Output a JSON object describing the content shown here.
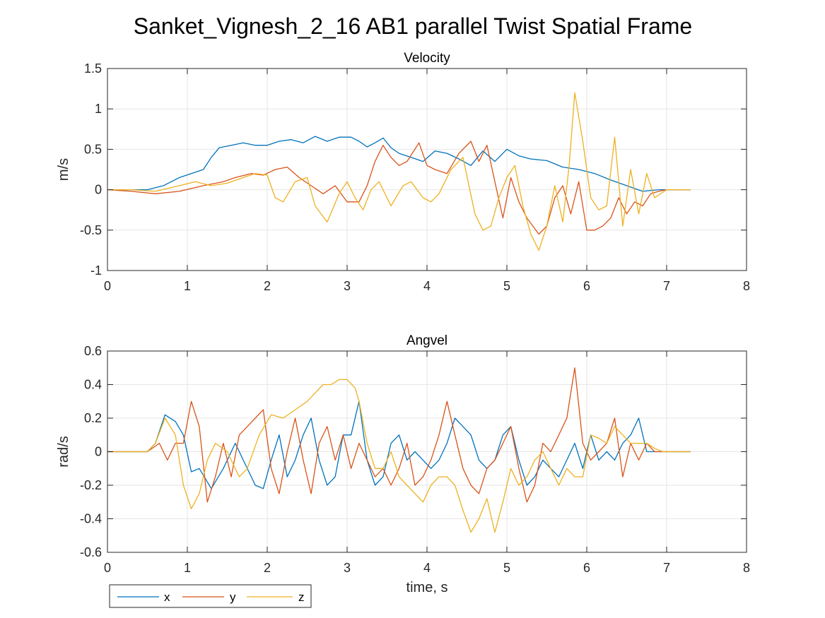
{
  "figure_title": "Sanket_Vignesh_2_16 AB1 parallel Twist Spatial Frame",
  "chart_data": [
    {
      "type": "line",
      "title": "Velocity",
      "xlabel": "",
      "ylabel": "m/s",
      "xlim": [
        0,
        8
      ],
      "ylim": [
        -1,
        1.5
      ],
      "xticks": [
        0,
        1,
        2,
        3,
        4,
        5,
        6,
        7,
        8
      ],
      "yticks": [
        -1,
        -0.5,
        0,
        0.5,
        1,
        1.5
      ],
      "grid": true,
      "series": [
        {
          "name": "x",
          "color": "#0072BD",
          "x": [
            0,
            0.5,
            0.7,
            0.9,
            1.05,
            1.2,
            1.3,
            1.4,
            1.55,
            1.7,
            1.85,
            2.0,
            2.15,
            2.3,
            2.45,
            2.6,
            2.75,
            2.9,
            3.05,
            3.15,
            3.25,
            3.35,
            3.45,
            3.55,
            3.65,
            3.8,
            3.95,
            4.1,
            4.25,
            4.4,
            4.55,
            4.7,
            4.85,
            5.0,
            5.15,
            5.3,
            5.5,
            5.7,
            5.9,
            6.1,
            6.3,
            6.5,
            6.7,
            6.9,
            7.1,
            7.3
          ],
          "y": [
            0,
            0,
            0.05,
            0.15,
            0.2,
            0.25,
            0.4,
            0.52,
            0.55,
            0.58,
            0.55,
            0.55,
            0.6,
            0.62,
            0.58,
            0.66,
            0.6,
            0.65,
            0.65,
            0.6,
            0.53,
            0.58,
            0.64,
            0.52,
            0.45,
            0.4,
            0.35,
            0.48,
            0.45,
            0.38,
            0.3,
            0.48,
            0.35,
            0.5,
            0.42,
            0.38,
            0.36,
            0.28,
            0.25,
            0.2,
            0.12,
            0.05,
            -0.02,
            0,
            0,
            0
          ]
        },
        {
          "name": "y",
          "color": "#D95319",
          "x": [
            0,
            0.3,
            0.6,
            0.9,
            1.2,
            1.45,
            1.6,
            1.8,
            1.95,
            2.1,
            2.25,
            2.4,
            2.55,
            2.7,
            2.85,
            3.0,
            3.15,
            3.25,
            3.35,
            3.45,
            3.55,
            3.65,
            3.75,
            3.9,
            4.0,
            4.1,
            4.25,
            4.4,
            4.55,
            4.65,
            4.75,
            4.85,
            4.95,
            5.05,
            5.15,
            5.25,
            5.4,
            5.5,
            5.6,
            5.7,
            5.8,
            5.9,
            6.0,
            6.1,
            6.2,
            6.3,
            6.4,
            6.5,
            6.6,
            6.7,
            6.8,
            6.9,
            7.0,
            7.1,
            7.3
          ],
          "y": [
            0,
            -0.02,
            -0.05,
            -0.02,
            0.05,
            0.1,
            0.15,
            0.2,
            0.18,
            0.25,
            0.28,
            0.15,
            0.05,
            -0.05,
            0.05,
            -0.15,
            -0.15,
            0.05,
            0.35,
            0.55,
            0.4,
            0.3,
            0.35,
            0.58,
            0.3,
            0.25,
            0.2,
            0.45,
            0.6,
            0.35,
            0.55,
            0.1,
            -0.35,
            0.15,
            -0.15,
            -0.35,
            -0.55,
            -0.45,
            -0.1,
            0.05,
            -0.3,
            0.1,
            -0.5,
            -0.5,
            -0.45,
            -0.35,
            -0.1,
            -0.3,
            -0.15,
            -0.2,
            -0.05,
            -0.02,
            0,
            0,
            0
          ]
        },
        {
          "name": "z",
          "color": "#EDB120",
          "x": [
            0,
            0.3,
            0.6,
            0.9,
            1.1,
            1.3,
            1.5,
            1.7,
            1.85,
            2.0,
            2.1,
            2.2,
            2.35,
            2.5,
            2.6,
            2.75,
            2.9,
            3.0,
            3.1,
            3.2,
            3.3,
            3.4,
            3.55,
            3.7,
            3.8,
            3.95,
            4.05,
            4.15,
            4.3,
            4.45,
            4.6,
            4.7,
            4.8,
            4.9,
            5.0,
            5.1,
            5.2,
            5.3,
            5.4,
            5.5,
            5.6,
            5.7,
            5.78,
            5.85,
            5.95,
            6.05,
            6.15,
            6.25,
            6.35,
            6.45,
            6.55,
            6.65,
            6.75,
            6.85,
            7.0,
            7.3
          ],
          "y": [
            0,
            0,
            -0.02,
            0.05,
            0.1,
            0.05,
            0.08,
            0.15,
            0.2,
            0.18,
            -0.1,
            -0.15,
            0.1,
            0.15,
            -0.2,
            -0.4,
            -0.05,
            0.1,
            -0.1,
            -0.25,
            0,
            0.1,
            -0.2,
            0.05,
            0.1,
            -0.1,
            -0.15,
            -0.05,
            0.25,
            0.4,
            -0.3,
            -0.5,
            -0.45,
            -0.1,
            0.15,
            0.3,
            -0.2,
            -0.55,
            -0.75,
            -0.45,
            0.05,
            -0.4,
            0.3,
            1.2,
            0.6,
            -0.1,
            -0.25,
            -0.2,
            0.65,
            -0.45,
            0.25,
            -0.3,
            0.2,
            -0.1,
            0,
            0
          ]
        }
      ]
    },
    {
      "type": "line",
      "title": "Angvel",
      "xlabel": "time, s",
      "ylabel": "rad/s",
      "xlim": [
        0,
        8
      ],
      "ylim": [
        -0.6,
        0.6
      ],
      "xticks": [
        0,
        1,
        2,
        3,
        4,
        5,
        6,
        7,
        8
      ],
      "yticks": [
        -0.6,
        -0.4,
        -0.2,
        0,
        0.2,
        0.4,
        0.6
      ],
      "grid": true,
      "series": [
        {
          "name": "x",
          "color": "#0072BD",
          "x": [
            0,
            0.5,
            0.6,
            0.72,
            0.85,
            0.95,
            1.05,
            1.15,
            1.3,
            1.45,
            1.6,
            1.7,
            1.85,
            1.95,
            2.05,
            2.15,
            2.25,
            2.35,
            2.45,
            2.55,
            2.65,
            2.75,
            2.85,
            2.95,
            3.05,
            3.15,
            3.25,
            3.35,
            3.45,
            3.55,
            3.65,
            3.75,
            3.85,
            3.95,
            4.05,
            4.15,
            4.25,
            4.35,
            4.45,
            4.55,
            4.65,
            4.75,
            4.85,
            4.95,
            5.05,
            5.15,
            5.25,
            5.35,
            5.45,
            5.55,
            5.65,
            5.75,
            5.85,
            5.95,
            6.05,
            6.15,
            6.25,
            6.35,
            6.45,
            6.55,
            6.65,
            6.75,
            6.85,
            7.0,
            7.3
          ],
          "y": [
            0,
            0,
            0.05,
            0.22,
            0.18,
            0.1,
            -0.12,
            -0.1,
            -0.22,
            -0.1,
            0.05,
            -0.05,
            -0.2,
            -0.22,
            -0.05,
            0.1,
            -0.15,
            -0.05,
            0.1,
            0.2,
            -0.05,
            -0.2,
            -0.15,
            0.1,
            0.1,
            0.3,
            -0.05,
            -0.2,
            -0.15,
            0.05,
            0.1,
            -0.05,
            0,
            -0.05,
            -0.1,
            -0.05,
            0.05,
            0.2,
            0.15,
            0.1,
            -0.05,
            -0.1,
            -0.05,
            0.1,
            0.15,
            -0.05,
            -0.2,
            -0.15,
            -0.05,
            -0.1,
            -0.15,
            -0.05,
            0.05,
            -0.1,
            0.1,
            -0.05,
            0,
            -0.05,
            0.05,
            0.1,
            0.2,
            0,
            0,
            0,
            0
          ]
        },
        {
          "name": "y",
          "color": "#D95319",
          "x": [
            0,
            0.5,
            0.65,
            0.75,
            0.85,
            0.95,
            1.05,
            1.15,
            1.25,
            1.35,
            1.45,
            1.55,
            1.65,
            1.75,
            1.85,
            1.95,
            2.05,
            2.15,
            2.25,
            2.35,
            2.45,
            2.55,
            2.65,
            2.75,
            2.85,
            2.95,
            3.05,
            3.15,
            3.25,
            3.35,
            3.45,
            3.55,
            3.65,
            3.75,
            3.85,
            3.95,
            4.05,
            4.15,
            4.25,
            4.35,
            4.45,
            4.55,
            4.65,
            4.75,
            4.85,
            4.95,
            5.05,
            5.15,
            5.25,
            5.35,
            5.45,
            5.55,
            5.65,
            5.75,
            5.85,
            5.95,
            6.05,
            6.15,
            6.25,
            6.35,
            6.45,
            6.55,
            6.65,
            6.75,
            6.85,
            7.0,
            7.3
          ],
          "y": [
            0,
            0,
            0.05,
            -0.05,
            0.05,
            0.05,
            0.3,
            0.15,
            -0.3,
            -0.15,
            0.05,
            -0.15,
            0.1,
            0.15,
            0.2,
            0.25,
            -0.1,
            -0.25,
            0,
            0.2,
            -0.05,
            -0.25,
            0.05,
            0.15,
            -0.05,
            0.1,
            -0.1,
            0.05,
            -0.05,
            -0.15,
            -0.1,
            -0.2,
            -0.1,
            0.05,
            -0.2,
            -0.15,
            -0.05,
            0.1,
            0.3,
            0.1,
            -0.1,
            -0.2,
            -0.25,
            -0.1,
            -0.05,
            0.05,
            0.15,
            -0.1,
            -0.3,
            -0.2,
            0.05,
            0,
            0.1,
            0.2,
            0.5,
            0.05,
            -0.05,
            0,
            0.05,
            0.2,
            -0.15,
            0.05,
            -0.05,
            0.05,
            0,
            0,
            0
          ]
        },
        {
          "name": "z",
          "color": "#EDB120",
          "x": [
            0,
            0.5,
            0.6,
            0.72,
            0.85,
            0.95,
            1.05,
            1.15,
            1.25,
            1.35,
            1.5,
            1.65,
            1.75,
            1.9,
            2.05,
            2.2,
            2.35,
            2.5,
            2.6,
            2.7,
            2.8,
            2.9,
            3.0,
            3.1,
            3.15,
            3.25,
            3.35,
            3.45,
            3.55,
            3.65,
            3.75,
            3.85,
            3.95,
            4.05,
            4.15,
            4.25,
            4.35,
            4.45,
            4.55,
            4.65,
            4.75,
            4.85,
            4.95,
            5.05,
            5.15,
            5.25,
            5.35,
            5.45,
            5.55,
            5.65,
            5.75,
            5.85,
            5.95,
            6.05,
            6.15,
            6.25,
            6.35,
            6.45,
            6.55,
            6.65,
            6.75,
            6.85,
            6.95,
            7.3
          ],
          "y": [
            0,
            0,
            0.05,
            0.2,
            0.1,
            -0.2,
            -0.34,
            -0.25,
            -0.05,
            0.05,
            0,
            -0.15,
            -0.1,
            0.1,
            0.22,
            0.2,
            0.25,
            0.3,
            0.35,
            0.4,
            0.4,
            0.43,
            0.43,
            0.38,
            0.3,
            0.05,
            -0.1,
            -0.1,
            0,
            -0.15,
            -0.2,
            -0.25,
            -0.3,
            -0.2,
            -0.15,
            -0.15,
            -0.2,
            -0.35,
            -0.48,
            -0.4,
            -0.28,
            -0.48,
            -0.3,
            -0.1,
            -0.2,
            -0.15,
            -0.05,
            0,
            -0.1,
            -0.2,
            -0.1,
            -0.15,
            -0.15,
            0.1,
            0.08,
            0.05,
            0.15,
            0.1,
            0.05,
            0.05,
            0.05,
            0.02,
            0,
            0
          ]
        }
      ]
    }
  ],
  "legend": {
    "placement": "bottom-left",
    "entries": [
      "x",
      "y",
      "z"
    ]
  }
}
